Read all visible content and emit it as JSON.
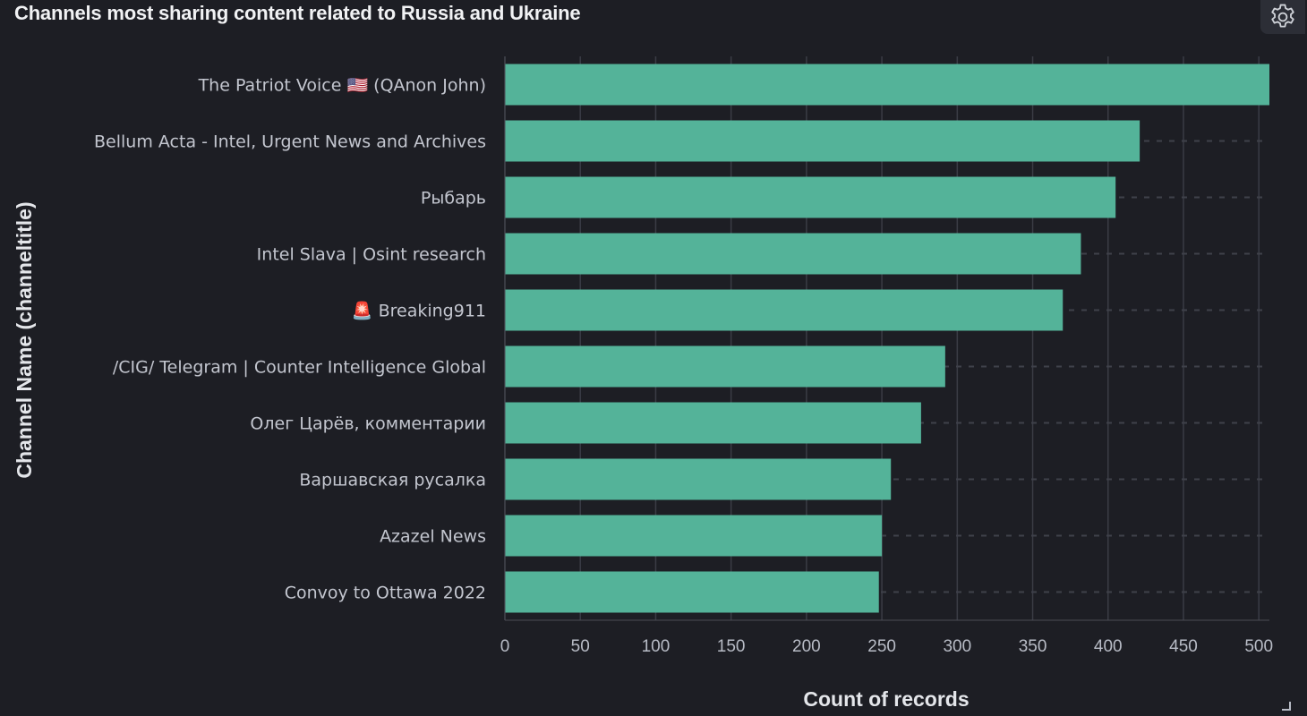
{
  "panel": {
    "title": "Channels most sharing content related to Russia and Ukraine",
    "settings_icon": "gear-icon",
    "resize_icon": "resize-corner-icon"
  },
  "colors": {
    "background": "#1d1e24",
    "bar": "#54b399",
    "grid": "#3a3c45",
    "text": "#c3c6cf"
  },
  "chart_data": {
    "type": "bar",
    "orientation": "horizontal",
    "title": "Channels most sharing content related to Russia and Ukraine",
    "xlabel": "Count of records",
    "ylabel": "Channel Name (channeltitle)",
    "categories": [
      "The Patriot Voice 🇺🇸  (QAnon John)",
      "Bellum Acta - Intel, Urgent News and Archives",
      "Рыбарь",
      "Intel Slava | Osint research",
      "🚨 Breaking911",
      "/CIG/ Telegram | Counter Intelligence Global",
      "Олег Царёв, комментарии",
      "Варшавская русалка",
      "Azazel News",
      "Convoy to Ottawa 2022"
    ],
    "values": [
      507,
      421,
      405,
      382,
      370,
      292,
      276,
      256,
      250,
      248
    ],
    "xlim": [
      0,
      507
    ],
    "xticks": [
      0,
      50,
      100,
      150,
      200,
      250,
      300,
      350,
      400,
      450,
      500
    ],
    "grid": "vertical solid, horizontal dashed"
  }
}
